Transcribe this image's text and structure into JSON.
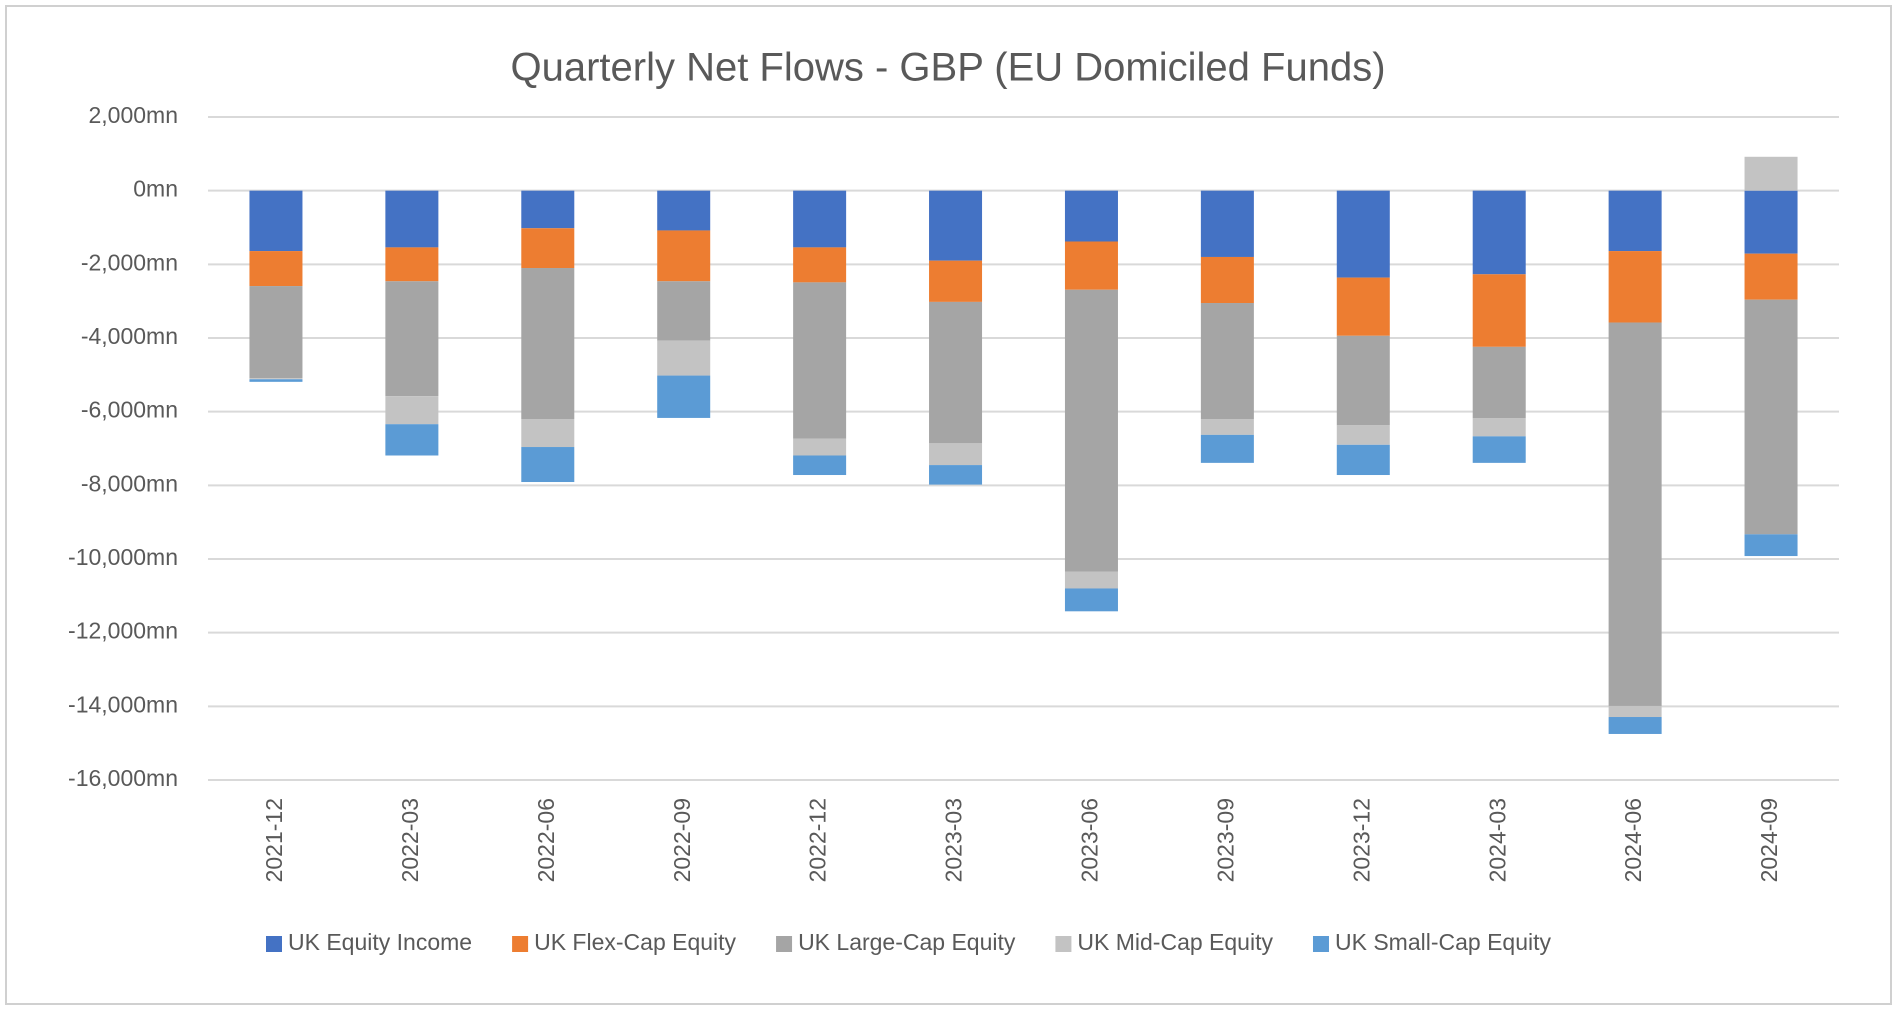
{
  "chart_data": {
    "type": "stacked-bar",
    "title": "Quarterly Net Flows - GBP (EU Domiciled Funds)",
    "categories": [
      "2021-12",
      "2022-03",
      "2022-06",
      "2022-09",
      "2022-12",
      "2023-03",
      "2023-06",
      "2023-09",
      "2023-12",
      "2024-03",
      "2024-06",
      "2024-09"
    ],
    "series": [
      {
        "name": "UK Equity Income",
        "color": "#4472c4",
        "values": [
          -1640,
          -1540,
          -1020,
          -1080,
          -1540,
          -1900,
          -1380,
          -1800,
          -2360,
          -2270,
          -1640,
          -1710
        ]
      },
      {
        "name": "UK Flex-Cap Equity",
        "color": "#ed7d31",
        "values": [
          -950,
          -920,
          -1080,
          -1380,
          -950,
          -1120,
          -1310,
          -1250,
          -1580,
          -1970,
          -1940,
          -1250
        ]
      },
      {
        "name": "UK Large-Cap Equity",
        "color": "#a5a5a5",
        "values": [
          -2500,
          -3120,
          -4100,
          -1610,
          -4240,
          -3840,
          -7650,
          -3150,
          -2430,
          -1940,
          -10410,
          -6370
        ]
      },
      {
        "name": "UK Mid-Cap Equity",
        "color": "#c3c3c3",
        "values": [
          -30,
          -760,
          -760,
          -950,
          -460,
          -590,
          -460,
          -430,
          -530,
          -490,
          -300,
          920
        ]
      },
      {
        "name": "UK Small-Cap Equity",
        "color": "#5b9bd5",
        "values": [
          -70,
          -850,
          -950,
          -1150,
          -530,
          -530,
          -620,
          -760,
          -820,
          -720,
          -460,
          -590
        ]
      }
    ],
    "ylim": [
      -16000,
      2000
    ],
    "yticks": [
      {
        "value": 2000,
        "label": "2,000mn"
      },
      {
        "value": 0,
        "label": "0mn"
      },
      {
        "value": -2000,
        "label": "-2,000mn"
      },
      {
        "value": -4000,
        "label": "-4,000mn"
      },
      {
        "value": -6000,
        "label": "-6,000mn"
      },
      {
        "value": -8000,
        "label": "-8,000mn"
      },
      {
        "value": -10000,
        "label": "-10,000mn"
      },
      {
        "value": -12000,
        "label": "-12,000mn"
      },
      {
        "value": -14000,
        "label": "-14,000mn"
      },
      {
        "value": -16000,
        "label": "-16,000mn"
      }
    ],
    "grid": true,
    "legend": "bottom"
  }
}
